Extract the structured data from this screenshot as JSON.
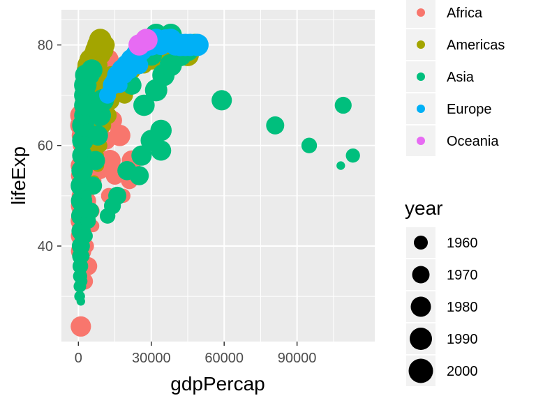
{
  "chart_data": {
    "type": "scatter",
    "title": "",
    "xlabel": "gdpPercap",
    "ylabel": "lifeExp",
    "xlim": [
      -7000,
      122000
    ],
    "ylim": [
      21,
      87
    ],
    "x_ticks": [
      0,
      30000,
      60000,
      90000
    ],
    "x_tick_labels": [
      "0",
      "30000",
      "60000",
      "90000"
    ],
    "y_ticks": [
      40,
      60,
      80
    ],
    "y_tick_labels": [
      "40",
      "60",
      "80"
    ],
    "grid": true,
    "colors": {
      "Africa": "#F8766D",
      "Americas": "#A3A500",
      "Asia": "#00BF7D",
      "Europe": "#00B0F6",
      "Oceania": "#E76BF3",
      "panel_bg": "#EBEBEB",
      "grid": "#FFFFFF",
      "text": "#4D4D4D",
      "title_text": "#000000"
    },
    "legend_color": {
      "title": "",
      "position": "right",
      "entries": [
        "Africa",
        "Americas",
        "Asia",
        "Europe",
        "Oceania"
      ]
    },
    "legend_size": {
      "title": "year",
      "position": "right",
      "entries": [
        "1960",
        "1970",
        "1980",
        "1990",
        "2000"
      ]
    },
    "series": [
      {
        "name": "Africa",
        "points": [
          [
            300,
            38,
            1960
          ],
          [
            400,
            41,
            1965
          ],
          [
            500,
            44,
            1970
          ],
          [
            600,
            47,
            1975
          ],
          [
            700,
            50,
            1980
          ],
          [
            800,
            52,
            1985
          ],
          [
            900,
            54,
            1990
          ],
          [
            1000,
            56,
            1995
          ],
          [
            1200,
            45,
            2000
          ],
          [
            1500,
            48,
            2005
          ],
          [
            350,
            36,
            1955
          ],
          [
            450,
            39,
            1960
          ],
          [
            650,
            43,
            1975
          ],
          [
            750,
            46,
            1985
          ],
          [
            850,
            42,
            1990
          ],
          [
            1100,
            39,
            1995
          ],
          [
            1300,
            44,
            1985
          ],
          [
            1600,
            47,
            1990
          ],
          [
            1800,
            51,
            1995
          ],
          [
            2000,
            55,
            2000
          ],
          [
            2200,
            58,
            2000
          ],
          [
            2500,
            60,
            2005
          ],
          [
            2800,
            62,
            2005
          ],
          [
            3200,
            61,
            1990
          ],
          [
            3500,
            59,
            1985
          ],
          [
            4000,
            57,
            1980
          ],
          [
            4500,
            54,
            1975
          ],
          [
            5000,
            52,
            1990
          ],
          [
            1000,
            66,
            2000
          ],
          [
            2000,
            63,
            2005
          ],
          [
            1000,
            24,
            1995
          ],
          [
            2000,
            36,
            1970
          ],
          [
            2500,
            33,
            1980
          ],
          [
            4000,
            36,
            1985
          ],
          [
            3500,
            40,
            1970
          ],
          [
            5500,
            47,
            1975
          ],
          [
            6000,
            53,
            1980
          ],
          [
            7500,
            58,
            1985
          ],
          [
            8500,
            62,
            1990
          ],
          [
            10000,
            56,
            1995
          ],
          [
            13000,
            57,
            2000
          ],
          [
            12500,
            50,
            1975
          ],
          [
            15000,
            54,
            1985
          ],
          [
            17000,
            62,
            2000
          ],
          [
            22000,
            57,
            1995
          ],
          [
            21000,
            53,
            1980
          ],
          [
            18500,
            50,
            1970
          ],
          [
            3000,
            46,
            1960
          ],
          [
            1700,
            52,
            1965
          ],
          [
            600,
            60,
            1970
          ],
          [
            800,
            64,
            1995
          ],
          [
            1200,
            62,
            1990
          ],
          [
            2600,
            42,
            1965
          ],
          [
            3300,
            45,
            1970
          ],
          [
            6000,
            44,
            1965
          ],
          [
            9000,
            55,
            1980
          ],
          [
            11500,
            61,
            1985
          ],
          [
            14000,
            65,
            1990
          ],
          [
            4800,
            66,
            1995
          ],
          [
            3000,
            69,
            2000
          ],
          [
            6500,
            70,
            2005
          ],
          [
            8000,
            73,
            2000
          ],
          [
            10500,
            75,
            2005
          ],
          [
            12000,
            77,
            2005
          ],
          [
            7000,
            72,
            1995
          ],
          [
            5000,
            62,
            1985
          ],
          [
            1500,
            57,
            1970
          ],
          [
            2100,
            49,
            1965
          ],
          [
            2700,
            53,
            1975
          ],
          [
            3800,
            49,
            1980
          ]
        ]
      },
      {
        "name": "Americas",
        "points": [
          [
            2000,
            70,
            1980
          ],
          [
            2500,
            72,
            1985
          ],
          [
            3000,
            74,
            1990
          ],
          [
            3500,
            75,
            1995
          ],
          [
            4000,
            76,
            2000
          ],
          [
            5000,
            77,
            2005
          ],
          [
            6000,
            78,
            1990
          ],
          [
            7000,
            79,
            1995
          ],
          [
            8000,
            80,
            2000
          ],
          [
            9000,
            81,
            2005
          ],
          [
            10000,
            79,
            2000
          ],
          [
            11000,
            80,
            1990
          ],
          [
            9500,
            78,
            1985
          ],
          [
            8500,
            76,
            1980
          ],
          [
            7500,
            74,
            1975
          ],
          [
            6500,
            72,
            1970
          ],
          [
            5500,
            70,
            1965
          ],
          [
            4500,
            68,
            1960
          ],
          [
            3800,
            66,
            1965
          ],
          [
            4200,
            64,
            1960
          ],
          [
            5000,
            62,
            1970
          ],
          [
            6000,
            60,
            1975
          ],
          [
            7000,
            58,
            1980
          ],
          [
            7500,
            63,
            1985
          ],
          [
            8000,
            66,
            1990
          ],
          [
            8500,
            69,
            1995
          ],
          [
            9000,
            71,
            2000
          ],
          [
            10000,
            67,
            1995
          ],
          [
            11000,
            70,
            2000
          ],
          [
            12000,
            72,
            2000
          ],
          [
            13000,
            69,
            1990
          ],
          [
            14000,
            71,
            1995
          ],
          [
            15000,
            73,
            2000
          ],
          [
            16000,
            72,
            1990
          ],
          [
            18000,
            74,
            1995
          ],
          [
            20000,
            76,
            2000
          ],
          [
            22000,
            75,
            1985
          ],
          [
            24000,
            77,
            1990
          ],
          [
            27000,
            76,
            1980
          ],
          [
            30000,
            77,
            1990
          ],
          [
            33000,
            77,
            1995
          ],
          [
            36000,
            78,
            2000
          ],
          [
            39000,
            78,
            2005
          ],
          [
            42000,
            78,
            2005
          ],
          [
            45000,
            78,
            2005
          ],
          [
            9000,
            60,
            1970
          ],
          [
            8000,
            56,
            1965
          ],
          [
            6500,
            53,
            1960
          ],
          [
            10000,
            64,
            1980
          ],
          [
            12000,
            66,
            1985
          ],
          [
            13500,
            74,
            1985
          ],
          [
            17000,
            75,
            1975
          ],
          [
            19000,
            70,
            1980
          ]
        ]
      },
      {
        "name": "Asia",
        "points": [
          [
            500,
            30,
            1960
          ],
          [
            600,
            32,
            1965
          ],
          [
            700,
            34,
            1970
          ],
          [
            800,
            36,
            1975
          ],
          [
            900,
            38,
            1980
          ],
          [
            1000,
            40,
            1985
          ],
          [
            1100,
            43,
            1990
          ],
          [
            1200,
            46,
            1995
          ],
          [
            1300,
            49,
            2000
          ],
          [
            1400,
            52,
            2005
          ],
          [
            1500,
            55,
            2000
          ],
          [
            1600,
            58,
            1995
          ],
          [
            1800,
            61,
            2000
          ],
          [
            2000,
            64,
            2005
          ],
          [
            2200,
            66,
            1990
          ],
          [
            2400,
            68,
            1995
          ],
          [
            2600,
            70,
            2000
          ],
          [
            2800,
            72,
            2005
          ],
          [
            3000,
            74,
            2000
          ],
          [
            1000,
            29,
            1955
          ],
          [
            1500,
            33,
            1960
          ],
          [
            2000,
            38,
            1965
          ],
          [
            3000,
            42,
            1970
          ],
          [
            4000,
            45,
            1975
          ],
          [
            5000,
            47,
            1980
          ],
          [
            6000,
            52,
            1985
          ],
          [
            7000,
            57,
            1990
          ],
          [
            8000,
            62,
            1995
          ],
          [
            9000,
            66,
            2000
          ],
          [
            10000,
            69,
            2005
          ],
          [
            12000,
            46,
            1975
          ],
          [
            14000,
            48,
            1980
          ],
          [
            16000,
            50,
            1985
          ],
          [
            20000,
            55,
            1990
          ],
          [
            25000,
            54,
            1990
          ],
          [
            26000,
            58,
            1995
          ],
          [
            30000,
            61,
            2000
          ],
          [
            34000,
            63,
            2000
          ],
          [
            34000,
            59,
            1995
          ],
          [
            27000,
            68,
            2000
          ],
          [
            32000,
            71,
            2005
          ],
          [
            35000,
            74,
            2005
          ],
          [
            38000,
            76,
            2005
          ],
          [
            42000,
            78,
            2005
          ],
          [
            45000,
            79,
            2005
          ],
          [
            48000,
            80,
            2005
          ],
          [
            30000,
            78,
            2000
          ],
          [
            32000,
            82,
            2005
          ],
          [
            38000,
            82,
            2005
          ],
          [
            59000,
            69,
            1995
          ],
          [
            81000,
            64,
            1985
          ],
          [
            95000,
            60,
            1975
          ],
          [
            109000,
            68,
            1980
          ],
          [
            113000,
            58,
            1970
          ],
          [
            108000,
            56,
            1955
          ],
          [
            3500,
            72,
            1990
          ],
          [
            4500,
            74,
            1995
          ],
          [
            5500,
            75,
            2000
          ],
          [
            18000,
            73,
            1995
          ],
          [
            22000,
            72,
            1990
          ],
          [
            1200,
            58,
            1965
          ],
          [
            1800,
            51,
            1970
          ],
          [
            2500,
            55,
            1975
          ],
          [
            3200,
            50,
            1960
          ],
          [
            800,
            42,
            1965
          ]
        ]
      },
      {
        "name": "Europe",
        "points": [
          [
            14000,
            72,
            1990
          ],
          [
            16000,
            74,
            1995
          ],
          [
            18000,
            75,
            2000
          ],
          [
            20000,
            76,
            2000
          ],
          [
            22000,
            77,
            2005
          ],
          [
            24000,
            78,
            2005
          ],
          [
            26000,
            79,
            2000
          ],
          [
            28000,
            80,
            2005
          ],
          [
            30000,
            80,
            2000
          ],
          [
            32000,
            81,
            2005
          ],
          [
            34000,
            80,
            1995
          ],
          [
            36000,
            81,
            2000
          ],
          [
            38000,
            81,
            2005
          ],
          [
            40000,
            80,
            2000
          ],
          [
            42000,
            80,
            2005
          ],
          [
            44000,
            80,
            2005
          ],
          [
            46000,
            80,
            2005
          ],
          [
            49000,
            80,
            2005
          ],
          [
            12000,
            70,
            1980
          ],
          [
            15000,
            73,
            1985
          ],
          [
            17000,
            72,
            1975
          ],
          [
            19000,
            74,
            1980
          ],
          [
            21000,
            75,
            1985
          ],
          [
            23000,
            76,
            1990
          ],
          [
            25000,
            76,
            1985
          ]
        ]
      },
      {
        "name": "Oceania",
        "points": [
          [
            25000,
            80,
            2000
          ],
          [
            28000,
            81,
            2005
          ]
        ]
      }
    ]
  }
}
